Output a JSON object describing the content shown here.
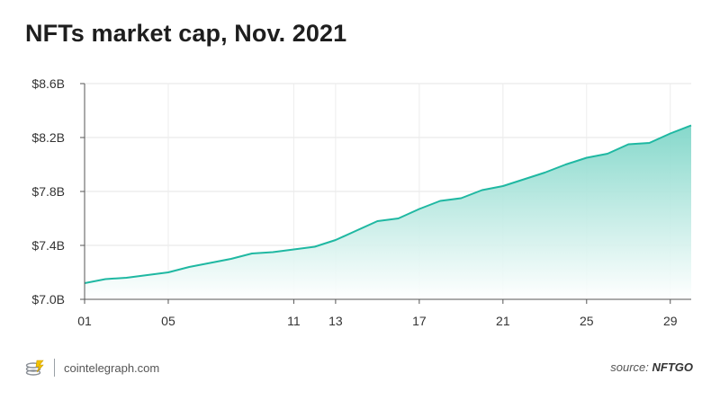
{
  "chart_data": {
    "type": "area",
    "title": "NFTs market cap, Nov. 2021",
    "xlabel": "",
    "ylabel": "",
    "x": [
      "01",
      "02",
      "03",
      "04",
      "05",
      "06",
      "07",
      "08",
      "09",
      "10",
      "11",
      "12",
      "13",
      "14",
      "15",
      "16",
      "17",
      "18",
      "19",
      "20",
      "21",
      "22",
      "23",
      "24",
      "25",
      "26",
      "27",
      "28",
      "29",
      "30"
    ],
    "x_ticks": [
      "01",
      "05",
      "11",
      "13",
      "17",
      "21",
      "25",
      "29"
    ],
    "y_ticks": [
      "$7.0B",
      "$7.4B",
      "$7.8B",
      "$8.2B",
      "$8.6B"
    ],
    "series": [
      {
        "values": [
          7.12,
          7.15,
          7.16,
          7.18,
          7.2,
          7.24,
          7.27,
          7.3,
          7.34,
          7.35,
          7.37,
          7.39,
          7.44,
          7.51,
          7.58,
          7.6,
          7.67,
          7.73,
          7.75,
          7.81,
          7.84,
          7.89,
          7.94,
          8.0,
          8.05,
          8.08,
          8.15,
          8.16,
          8.23,
          8.29
        ],
        "unit": "$B"
      }
    ],
    "ylim": [
      7.0,
      8.6
    ],
    "grid": true,
    "colors": {
      "line": "#1fb8a2",
      "fill_top": "#7fd6c8",
      "fill_bottom": "#ffffff"
    }
  },
  "footer": {
    "site": "cointelegraph.com",
    "source_prefix": "source: ",
    "source_name": "NFTGO",
    "logo_icon": "cointelegraph-coins-icon"
  }
}
